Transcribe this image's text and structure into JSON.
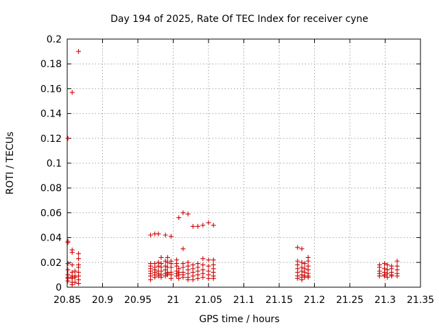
{
  "chart_data": {
    "type": "scatter",
    "title": "Day 194 of 2025, Rate Of TEC Index for receiver cyne",
    "xlabel": "GPS time / hours",
    "ylabel": "ROTI / TECUs",
    "xlim": [
      20.85,
      21.35
    ],
    "ylim": [
      0,
      0.2
    ],
    "x_ticks": [
      "20.85",
      "20.9",
      "20.95",
      "21",
      "21.05",
      "21.1",
      "21.15",
      "21.2",
      "21.25",
      "21.3",
      "21.35"
    ],
    "y_ticks": [
      "0",
      "0.02",
      "0.04",
      "0.06",
      "0.08",
      "0.1",
      "0.12",
      "0.14",
      "0.16",
      "0.18",
      "0.2"
    ],
    "grid": true,
    "marker": "plus",
    "color": "#cc0000",
    "series": [
      {
        "points": [
          [
            20.851,
            0.037
          ],
          [
            20.851,
            0.036
          ],
          [
            20.851,
            0.019
          ],
          [
            20.851,
            0.014
          ],
          [
            20.851,
            0.01
          ],
          [
            20.851,
            0.008
          ],
          [
            20.851,
            0.007
          ],
          [
            20.851,
            0.005
          ],
          [
            20.851,
            0.12
          ],
          [
            20.857,
            0.03
          ],
          [
            20.857,
            0.028
          ],
          [
            20.857,
            0.018
          ],
          [
            20.857,
            0.012
          ],
          [
            20.857,
            0.009
          ],
          [
            20.857,
            0.008
          ],
          [
            20.857,
            0.007
          ],
          [
            20.857,
            0.004
          ],
          [
            20.857,
            0.002
          ],
          [
            20.857,
            0.157
          ],
          [
            20.861,
            0.013
          ],
          [
            20.861,
            0.009
          ],
          [
            20.861,
            0.008
          ],
          [
            20.861,
            0.004
          ],
          [
            20.866,
            0.027
          ],
          [
            20.866,
            0.023
          ],
          [
            20.866,
            0.018
          ],
          [
            20.866,
            0.016
          ],
          [
            20.866,
            0.012
          ],
          [
            20.866,
            0.009
          ],
          [
            20.866,
            0.006
          ],
          [
            20.866,
            0.003
          ],
          [
            20.866,
            0.19
          ],
          [
            20.968,
            0.042
          ],
          [
            20.968,
            0.019
          ],
          [
            20.968,
            0.017
          ],
          [
            20.968,
            0.015
          ],
          [
            20.968,
            0.013
          ],
          [
            20.968,
            0.011
          ],
          [
            20.968,
            0.009
          ],
          [
            20.968,
            0.006
          ],
          [
            20.974,
            0.043
          ],
          [
            20.974,
            0.019
          ],
          [
            20.974,
            0.016
          ],
          [
            20.974,
            0.014
          ],
          [
            20.974,
            0.012
          ],
          [
            20.974,
            0.01
          ],
          [
            20.974,
            0.008
          ],
          [
            20.979,
            0.043
          ],
          [
            20.979,
            0.02
          ],
          [
            20.979,
            0.017
          ],
          [
            20.979,
            0.013
          ],
          [
            20.979,
            0.011
          ],
          [
            20.979,
            0.009
          ],
          [
            20.983,
            0.024
          ],
          [
            20.983,
            0.019
          ],
          [
            20.983,
            0.016
          ],
          [
            20.983,
            0.013
          ],
          [
            20.983,
            0.01
          ],
          [
            20.983,
            0.008
          ],
          [
            20.989,
            0.042
          ],
          [
            20.989,
            0.021
          ],
          [
            20.989,
            0.017
          ],
          [
            20.989,
            0.014
          ],
          [
            20.989,
            0.011
          ],
          [
            20.989,
            0.009
          ],
          [
            20.992,
            0.024
          ],
          [
            20.992,
            0.02
          ],
          [
            20.992,
            0.016
          ],
          [
            20.992,
            0.012
          ],
          [
            20.992,
            0.011
          ],
          [
            20.992,
            0.01
          ],
          [
            20.997,
            0.041
          ],
          [
            20.997,
            0.021
          ],
          [
            20.997,
            0.019
          ],
          [
            20.997,
            0.016
          ],
          [
            20.997,
            0.012
          ],
          [
            20.997,
            0.01
          ],
          [
            20.997,
            0.007
          ],
          [
            21.005,
            0.022
          ],
          [
            21.005,
            0.019
          ],
          [
            21.005,
            0.017
          ],
          [
            21.005,
            0.013
          ],
          [
            21.005,
            0.011
          ],
          [
            21.005,
            0.009
          ],
          [
            21.008,
            0.056
          ],
          [
            21.008,
            0.015
          ],
          [
            21.008,
            0.012
          ],
          [
            21.008,
            0.01
          ],
          [
            21.008,
            0.007
          ],
          [
            21.014,
            0.06
          ],
          [
            21.014,
            0.031
          ],
          [
            21.014,
            0.019
          ],
          [
            21.014,
            0.016
          ],
          [
            21.014,
            0.012
          ],
          [
            21.014,
            0.01
          ],
          [
            21.014,
            0.008
          ],
          [
            21.021,
            0.059
          ],
          [
            21.021,
            0.02
          ],
          [
            21.021,
            0.017
          ],
          [
            21.021,
            0.014
          ],
          [
            21.021,
            0.011
          ],
          [
            21.021,
            0.008
          ],
          [
            21.021,
            0.006
          ],
          [
            21.028,
            0.049
          ],
          [
            21.028,
            0.018
          ],
          [
            21.028,
            0.015
          ],
          [
            21.028,
            0.012
          ],
          [
            21.028,
            0.009
          ],
          [
            21.028,
            0.006
          ],
          [
            21.035,
            0.049
          ],
          [
            21.035,
            0.019
          ],
          [
            21.035,
            0.016
          ],
          [
            21.035,
            0.013
          ],
          [
            21.035,
            0.01
          ],
          [
            21.035,
            0.007
          ],
          [
            21.042,
            0.05
          ],
          [
            21.042,
            0.023
          ],
          [
            21.042,
            0.018
          ],
          [
            21.042,
            0.014
          ],
          [
            21.042,
            0.011
          ],
          [
            21.042,
            0.008
          ],
          [
            21.05,
            0.052
          ],
          [
            21.05,
            0.022
          ],
          [
            21.05,
            0.017
          ],
          [
            21.05,
            0.013
          ],
          [
            21.05,
            0.01
          ],
          [
            21.05,
            0.007
          ],
          [
            21.057,
            0.05
          ],
          [
            21.057,
            0.022
          ],
          [
            21.057,
            0.018
          ],
          [
            21.057,
            0.015
          ],
          [
            21.057,
            0.012
          ],
          [
            21.057,
            0.009
          ],
          [
            21.057,
            0.007
          ],
          [
            21.176,
            0.032
          ],
          [
            21.176,
            0.021
          ],
          [
            21.176,
            0.018
          ],
          [
            21.176,
            0.015
          ],
          [
            21.176,
            0.012
          ],
          [
            21.176,
            0.009
          ],
          [
            21.176,
            0.007
          ],
          [
            21.182,
            0.031
          ],
          [
            21.182,
            0.02
          ],
          [
            21.182,
            0.016
          ],
          [
            21.182,
            0.013
          ],
          [
            21.182,
            0.01
          ],
          [
            21.182,
            0.008
          ],
          [
            21.182,
            0.006
          ],
          [
            21.186,
            0.019
          ],
          [
            21.186,
            0.015
          ],
          [
            21.186,
            0.012
          ],
          [
            21.186,
            0.009
          ],
          [
            21.186,
            0.008
          ],
          [
            21.191,
            0.024
          ],
          [
            21.191,
            0.021
          ],
          [
            21.191,
            0.017
          ],
          [
            21.191,
            0.014
          ],
          [
            21.191,
            0.011
          ],
          [
            21.191,
            0.009
          ],
          [
            21.191,
            0.008
          ],
          [
            21.292,
            0.018
          ],
          [
            21.292,
            0.016
          ],
          [
            21.292,
            0.013
          ],
          [
            21.292,
            0.011
          ],
          [
            21.292,
            0.009
          ],
          [
            21.299,
            0.019
          ],
          [
            21.299,
            0.015
          ],
          [
            21.299,
            0.012
          ],
          [
            21.299,
            0.01
          ],
          [
            21.299,
            0.009
          ],
          [
            21.303,
            0.018
          ],
          [
            21.303,
            0.014
          ],
          [
            21.303,
            0.011
          ],
          [
            21.303,
            0.008
          ],
          [
            21.309,
            0.017
          ],
          [
            21.309,
            0.015
          ],
          [
            21.309,
            0.012
          ],
          [
            21.309,
            0.01
          ],
          [
            21.309,
            0.009
          ],
          [
            21.317,
            0.021
          ],
          [
            21.317,
            0.017
          ],
          [
            21.317,
            0.014
          ],
          [
            21.317,
            0.011
          ],
          [
            21.317,
            0.009
          ]
        ]
      }
    ]
  }
}
